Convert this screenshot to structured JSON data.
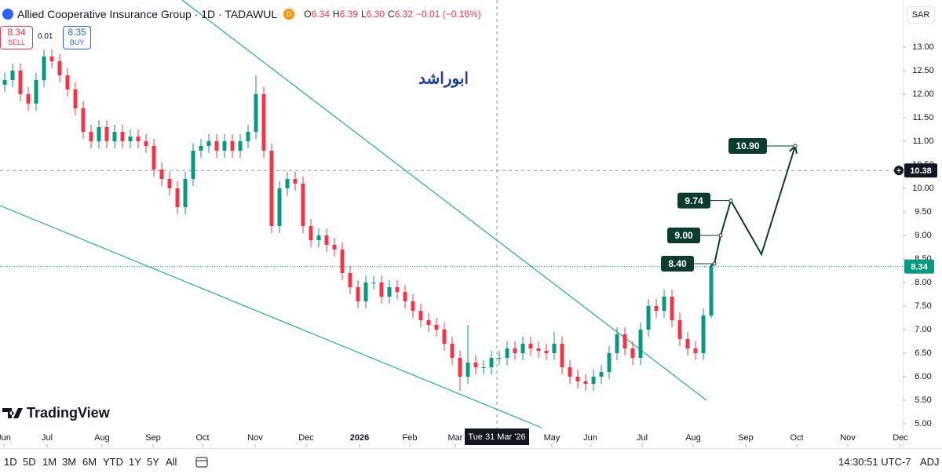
{
  "header": {
    "symbol": "Allied Cooperative Insurance Group · 1D · TADAWUL",
    "badge": "D",
    "ohlc": [
      {
        "key": "O",
        "value": "6.34"
      },
      {
        "key": "H",
        "value": "6.39"
      },
      {
        "key": "L",
        "value": "6.30"
      },
      {
        "key": "C",
        "value": "6.32"
      }
    ],
    "change": "−0.01 (−0.16%)"
  },
  "trade": {
    "sell_price": "8.34",
    "sell": "SELL",
    "spread": "0.01",
    "buy_price": "8.35",
    "buy": "BUY"
  },
  "currency": "SAR",
  "watermark": "ابوراشد",
  "logo": "TradingView",
  "chart_data": {
    "type": "candlestick",
    "xlim": [
      -0.6,
      114.4
    ],
    "ylim": [
      4.5,
      14.0
    ],
    "xticks": [
      {
        "value": -0.1,
        "label": "Jun"
      },
      {
        "value": 5.4,
        "label": "Jul"
      },
      {
        "value": 12.4,
        "label": "Aug"
      },
      {
        "value": 18.9,
        "label": "Sep"
      },
      {
        "value": 25.2,
        "label": "Oct"
      },
      {
        "value": 31.9,
        "label": "Nov"
      },
      {
        "value": 38.4,
        "label": "Dec"
      },
      {
        "value": 45.2,
        "label": "2026"
      },
      {
        "value": 51.6,
        "label": "Feb"
      },
      {
        "value": 57.4,
        "label": "Mar"
      },
      {
        "value": 69.7,
        "label": "May"
      },
      {
        "value": 74.6,
        "label": "Jun"
      },
      {
        "value": 81.2,
        "label": "Jul"
      },
      {
        "value": 87.7,
        "label": "Aug"
      },
      {
        "value": 94.4,
        "label": "Sep"
      },
      {
        "value": 100.9,
        "label": "Oct"
      },
      {
        "value": 107.4,
        "label": "Nov"
      },
      {
        "value": 114.1,
        "label": "Dec"
      }
    ],
    "yticks": [
      {
        "value": 5,
        "label": "5.00"
      },
      {
        "value": 5.5,
        "label": "5.50"
      },
      {
        "value": 6,
        "label": "6.00"
      },
      {
        "value": 6.5,
        "label": "6.50"
      },
      {
        "value": 7,
        "label": "7.00"
      },
      {
        "value": 7.5,
        "label": "7.50"
      },
      {
        "value": 8,
        "label": "8.00"
      },
      {
        "value": 8.5,
        "label": "8.50"
      },
      {
        "value": 9,
        "label": "9.00"
      },
      {
        "value": 9.5,
        "label": "9.50"
      },
      {
        "value": 10,
        "label": "10.00"
      },
      {
        "value": 10.5,
        "label": "10.50"
      },
      {
        "value": 11,
        "label": "11.00"
      },
      {
        "value": 11.5,
        "label": "11.50"
      },
      {
        "value": 12,
        "label": "12.00"
      },
      {
        "value": 12.5,
        "label": "12.50"
      },
      {
        "value": 13,
        "label": "13.00"
      }
    ],
    "series": {
      "up_color": "#089981",
      "down_color": "#f23645",
      "open": [
        12.2,
        12.3,
        12.5,
        12.0,
        11.8,
        12.3,
        12.8,
        12.7,
        12.4,
        12.1,
        11.7,
        11.2,
        11.0,
        11.3,
        11.0,
        11.2,
        11.0,
        11.1,
        11.0,
        10.9,
        10.4,
        10.2,
        10.0,
        9.6,
        10.2,
        10.8,
        10.9,
        11.0,
        10.8,
        11.0,
        10.8,
        11.0,
        11.2,
        12.0,
        10.8,
        9.2,
        10.0,
        10.2,
        10.1,
        9.2,
        8.9,
        9.0,
        8.8,
        8.7,
        8.2,
        7.9,
        7.6,
        8.0,
        8.0,
        7.7,
        7.9,
        7.8,
        7.6,
        7.4,
        7.2,
        7.1,
        7.0,
        6.7,
        6.4,
        6.0,
        6.3,
        6.2,
        6.2,
        6.4,
        6.4,
        6.6,
        6.5,
        6.7,
        6.6,
        6.55,
        6.5,
        6.7,
        6.2,
        6.0,
        5.9,
        5.85,
        6.0,
        6.1,
        6.5,
        6.9,
        6.6,
        6.4,
        7.0,
        7.5,
        7.4,
        7.7,
        7.2,
        6.8,
        6.6,
        6.5,
        7.3
      ],
      "high": [
        12.45,
        12.65,
        12.65,
        12.15,
        12.45,
        12.95,
        12.95,
        12.85,
        12.55,
        12.25,
        11.85,
        11.35,
        11.45,
        11.45,
        11.35,
        11.35,
        11.25,
        11.25,
        11.15,
        11.05,
        10.55,
        10.35,
        10.15,
        10.35,
        10.95,
        11.05,
        11.15,
        11.15,
        11.15,
        11.15,
        11.15,
        11.35,
        12.4,
        12.15,
        10.95,
        10.15,
        10.35,
        10.35,
        10.25,
        9.35,
        9.15,
        9.15,
        8.95,
        8.85,
        8.35,
        8.05,
        8.15,
        8.15,
        8.15,
        8.05,
        8.05,
        7.95,
        7.75,
        7.55,
        7.35,
        7.25,
        7.15,
        6.85,
        6.55,
        7.1,
        6.45,
        6.35,
        6.55,
        6.55,
        6.75,
        6.75,
        6.85,
        6.85,
        6.75,
        6.7,
        6.95,
        6.85,
        6.35,
        6.15,
        6.05,
        6.15,
        6.25,
        6.65,
        7.05,
        7.05,
        6.75,
        7.15,
        7.65,
        7.65,
        7.85,
        7.85,
        7.35,
        6.95,
        6.75,
        7.45,
        8.39
      ],
      "low": [
        12.05,
        12.15,
        11.85,
        11.65,
        11.65,
        12.15,
        12.55,
        12.25,
        11.95,
        11.55,
        11.05,
        10.85,
        10.85,
        10.85,
        10.85,
        10.85,
        10.85,
        10.85,
        10.75,
        10.25,
        10.05,
        9.85,
        9.45,
        9.45,
        10.05,
        10.65,
        10.75,
        10.65,
        10.65,
        10.65,
        10.65,
        10.85,
        11.05,
        10.65,
        9.05,
        9.05,
        9.85,
        9.95,
        9.05,
        8.75,
        8.75,
        8.65,
        8.55,
        8.05,
        7.75,
        7.45,
        7.45,
        7.85,
        7.55,
        7.55,
        7.65,
        7.45,
        7.25,
        7.05,
        6.95,
        6.85,
        6.55,
        6.25,
        5.7,
        5.85,
        6.05,
        6.05,
        6.05,
        6.25,
        6.25,
        6.35,
        6.35,
        6.45,
        6.4,
        6.35,
        6.35,
        6.05,
        5.85,
        5.75,
        5.7,
        5.7,
        5.85,
        5.95,
        6.35,
        6.45,
        6.25,
        6.25,
        6.85,
        7.25,
        7.25,
        7.05,
        6.65,
        6.45,
        6.35,
        6.35,
        7.25
      ],
      "close": [
        12.3,
        12.5,
        12.0,
        11.8,
        12.3,
        12.8,
        12.7,
        12.4,
        12.1,
        11.7,
        11.2,
        11.0,
        11.3,
        11.0,
        11.2,
        11.0,
        11.1,
        11.0,
        10.9,
        10.4,
        10.2,
        10.0,
        9.6,
        10.2,
        10.8,
        10.9,
        11.0,
        10.8,
        11.0,
        10.8,
        11.0,
        11.2,
        12.0,
        10.8,
        9.2,
        10.0,
        10.2,
        10.1,
        9.2,
        8.9,
        9.0,
        8.8,
        8.7,
        8.2,
        7.9,
        7.6,
        8.0,
        8.0,
        7.7,
        7.9,
        7.8,
        7.6,
        7.4,
        7.2,
        7.1,
        7.0,
        6.7,
        6.4,
        6.0,
        6.3,
        6.2,
        6.2,
        6.4,
        6.4,
        6.6,
        6.5,
        6.7,
        6.6,
        6.55,
        6.5,
        6.7,
        6.2,
        6.0,
        5.9,
        5.85,
        6.0,
        6.1,
        6.5,
        6.9,
        6.6,
        6.4,
        7.0,
        7.5,
        7.4,
        7.7,
        7.2,
        6.8,
        6.6,
        6.5,
        7.3,
        8.34
      ]
    },
    "projection": {
      "color": "#0b3d2e",
      "x": [
        89.9,
        90.4,
        91.2,
        92.5,
        96.4,
        100.7
      ],
      "values": [
        8.34,
        8.4,
        9.0,
        9.74,
        8.6,
        10.9
      ],
      "value_labels": [
        null,
        "8.40",
        "9.00",
        "9.74",
        null,
        "10.90"
      ]
    },
    "price_line": {
      "value": 10.38,
      "label": "10.38"
    },
    "last_price": {
      "value": 8.34,
      "label": "8.34",
      "color": "#089981"
    },
    "crosshair": {
      "x": 62.7,
      "label": "Tue 31 Mar '26"
    }
  },
  "toolbar": {
    "ranges": [
      "1D",
      "5D",
      "1M",
      "3M",
      "6M",
      "YTD",
      "1Y",
      "5Y",
      "All"
    ],
    "time": "14:30:51 UTC-7",
    "adj": "ADJ"
  }
}
